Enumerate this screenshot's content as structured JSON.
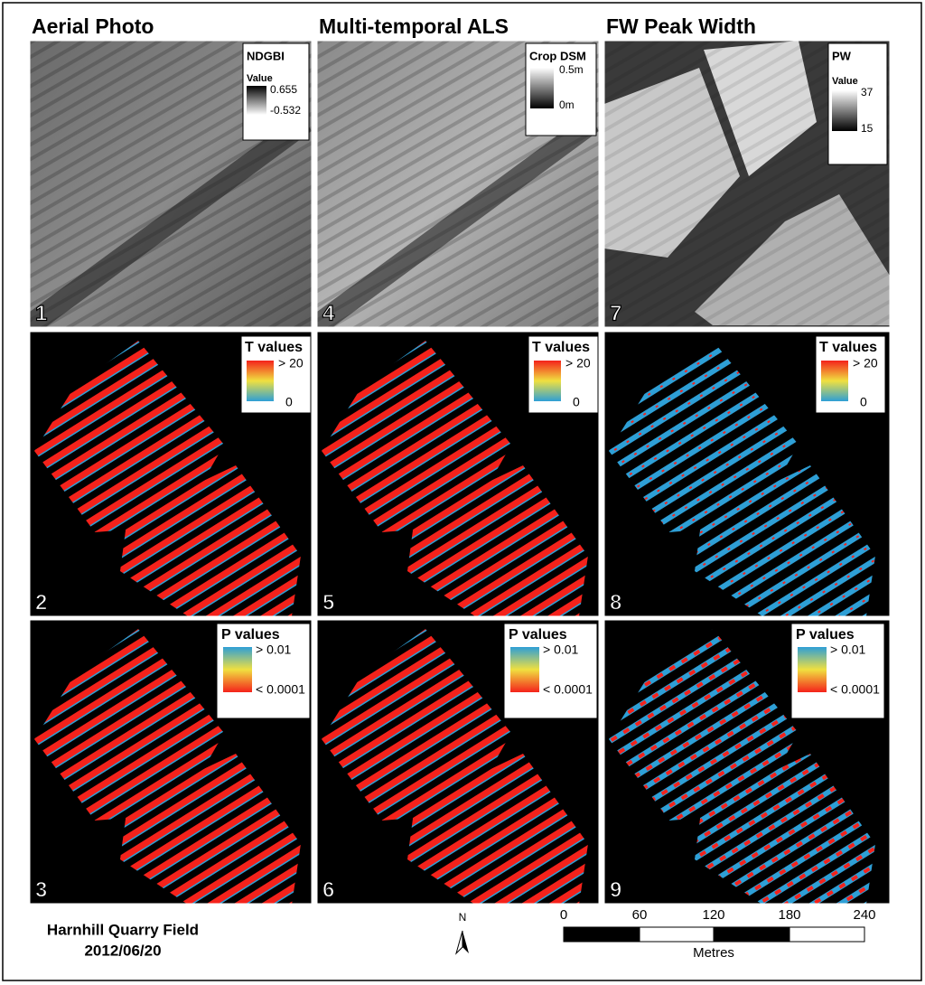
{
  "columns": [
    {
      "title": "Aerial Photo"
    },
    {
      "title": "Multi-temporal ALS"
    },
    {
      "title": "FW Peak Width"
    }
  ],
  "panels": [
    {
      "number": "1",
      "legend": {
        "title": "NDGBI",
        "label": "Value",
        "top": "0.655",
        "bottom": "-0.532"
      }
    },
    {
      "number": "2",
      "legend": {
        "title": "T values",
        "top": "> 20",
        "bottom": "0"
      }
    },
    {
      "number": "3",
      "legend": {
        "title": "P values",
        "top": "> 0.01",
        "bottom": "< 0.0001"
      }
    },
    {
      "number": "4",
      "legend": {
        "title": "Crop DSM",
        "top": "0.5m",
        "bottom": "0m"
      }
    },
    {
      "number": "5",
      "legend": {
        "title": "T values",
        "top": "> 20",
        "bottom": "0"
      }
    },
    {
      "number": "6",
      "legend": {
        "title": "P values",
        "top": "> 0.01",
        "bottom": "< 0.0001"
      }
    },
    {
      "number": "7",
      "legend": {
        "title": "PW",
        "label": "Value",
        "top": "37",
        "bottom": "15"
      }
    },
    {
      "number": "8",
      "legend": {
        "title": "T values",
        "top": "> 20",
        "bottom": "0"
      }
    },
    {
      "number": "9",
      "legend": {
        "title": "P values",
        "top": "> 0.01",
        "bottom": "< 0.0001"
      }
    }
  ],
  "footer": {
    "site": "Harnhill Quarry Field",
    "date": "2012/06/20",
    "north": "N",
    "scale": {
      "ticks": [
        0,
        60,
        120,
        180,
        240
      ],
      "unit": "Metres"
    }
  }
}
